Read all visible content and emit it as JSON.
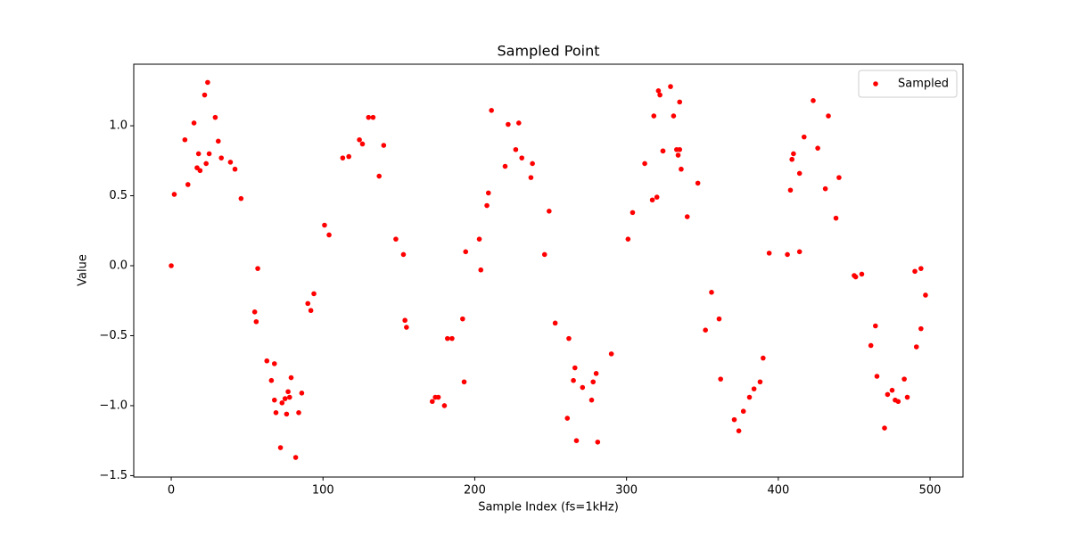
{
  "chart_data": {
    "type": "scatter",
    "title": "Sampled Point",
    "xlabel": "Sample Index (fs=1kHz)",
    "ylabel": "Value",
    "legend": "upper right",
    "xlim": [
      -24.7,
      521.7
    ],
    "ylim": [
      -1.51,
      1.44
    ],
    "xticks": [
      0,
      100,
      200,
      300,
      400,
      500
    ],
    "yticks": [
      {
        "value": -1.5,
        "label": "−1.5"
      },
      {
        "value": -1.0,
        "label": "−1.0"
      },
      {
        "value": -0.5,
        "label": "−0.5"
      },
      {
        "value": 0.0,
        "label": "0.0"
      },
      {
        "value": 0.5,
        "label": "0.5"
      },
      {
        "value": 1.0,
        "label": "1.0"
      }
    ],
    "series": [
      {
        "name": "Sampled",
        "color": "#ff0000",
        "x": [
          0,
          2,
          9,
          11,
          15,
          17,
          18,
          19,
          22,
          23,
          24,
          25,
          29,
          31,
          33,
          39,
          42,
          46,
          55,
          56,
          57,
          63,
          66,
          68,
          68,
          69,
          72,
          73,
          75,
          76,
          77,
          78,
          79,
          82,
          84,
          86,
          90,
          92,
          94,
          101,
          104,
          113,
          117,
          124,
          126,
          130,
          133,
          137,
          140,
          148,
          153,
          154,
          155,
          172,
          174,
          176,
          180,
          182,
          185,
          192,
          193,
          194,
          203,
          204,
          208,
          209,
          211,
          220,
          222,
          227,
          229,
          231,
          237,
          238,
          246,
          249,
          253,
          261,
          262,
          265,
          266,
          267,
          271,
          277,
          278,
          280,
          281,
          290,
          301,
          304,
          312,
          317,
          318,
          320,
          321,
          322,
          324,
          324,
          329,
          331,
          333,
          334,
          335,
          335,
          336,
          340,
          347,
          352,
          356,
          361,
          362,
          371,
          374,
          377,
          381,
          384,
          388,
          390,
          394,
          406,
          408,
          409,
          410,
          414,
          414,
          417,
          423,
          426,
          431,
          433,
          438,
          440,
          450,
          451,
          455,
          461,
          464,
          465,
          470,
          472,
          475,
          477,
          479,
          483,
          485,
          490,
          491,
          494,
          494,
          497
        ],
        "values": [
          0.0,
          0.51,
          0.9,
          0.58,
          1.02,
          0.7,
          0.8,
          0.68,
          1.22,
          0.73,
          1.31,
          0.8,
          1.06,
          0.89,
          0.77,
          0.74,
          0.69,
          0.48,
          -0.33,
          -0.4,
          -0.02,
          -0.68,
          -0.82,
          -0.7,
          -0.96,
          -1.05,
          -1.3,
          -0.98,
          -0.95,
          -1.06,
          -0.9,
          -0.94,
          -0.8,
          -1.37,
          -1.05,
          -0.91,
          -0.27,
          -0.32,
          -0.2,
          0.29,
          0.22,
          0.77,
          0.78,
          0.9,
          0.87,
          1.06,
          1.06,
          0.64,
          0.86,
          0.19,
          0.08,
          -0.39,
          -0.44,
          -0.97,
          -0.94,
          -0.94,
          -1.0,
          -0.52,
          -0.52,
          -0.38,
          -0.83,
          0.1,
          0.19,
          -0.03,
          0.43,
          0.52,
          1.11,
          0.71,
          1.01,
          0.83,
          1.02,
          0.77,
          0.63,
          0.73,
          0.08,
          0.39,
          -0.41,
          -1.09,
          -0.52,
          -0.82,
          -0.73,
          -1.25,
          -0.87,
          -0.96,
          -0.83,
          -0.77,
          -1.26,
          -0.63,
          0.19,
          0.38,
          0.73,
          0.47,
          1.07,
          0.49,
          1.25,
          1.22,
          0.82,
          0.82,
          1.28,
          1.07,
          0.83,
          0.79,
          0.83,
          1.17,
          0.69,
          0.35,
          0.59,
          -0.46,
          -0.19,
          -0.38,
          -0.81,
          -1.1,
          -1.18,
          -1.04,
          -0.94,
          -0.88,
          -0.83,
          -0.66,
          0.09,
          0.08,
          0.54,
          0.76,
          0.8,
          0.66,
          0.1,
          0.92,
          1.18,
          0.84,
          0.55,
          1.07,
          0.34,
          0.63,
          -0.07,
          -0.08,
          -0.06,
          -0.57,
          -0.43,
          -0.79,
          -1.16,
          -0.92,
          -0.89,
          -0.96,
          -0.97,
          -0.81,
          -0.94,
          -0.04,
          -0.58,
          -0.02,
          -0.45,
          -0.21
        ]
      }
    ]
  }
}
